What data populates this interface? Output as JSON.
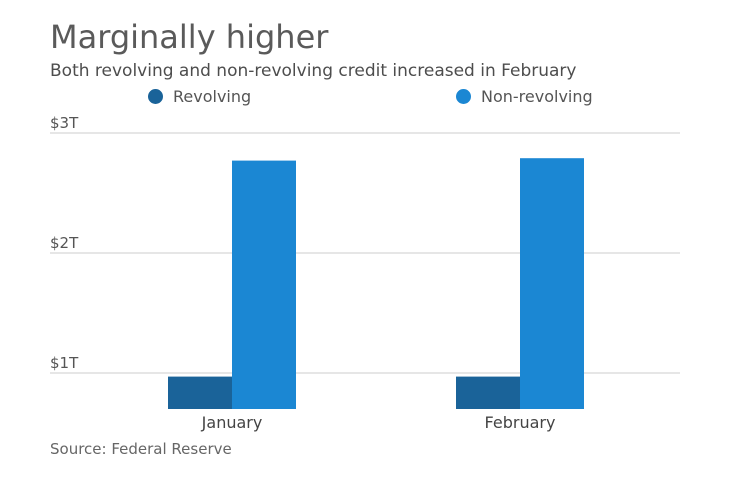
{
  "colors": {
    "revolving": "#1a6399",
    "non_revolving": "#1b87d3",
    "gridline": "#cccccc",
    "text": "#555555"
  },
  "chart_data": {
    "type": "bar",
    "title": "Marginally higher",
    "subtitle": "Both revolving and non-revolving credit increased in February",
    "xlabel": "",
    "ylabel": "",
    "categories": [
      "January",
      "February"
    ],
    "series": [
      {
        "name": "Revolving",
        "values": [
          0.97,
          0.97
        ]
      },
      {
        "name": "Non-revolving",
        "values": [
          2.77,
          2.79
        ]
      }
    ],
    "yticks": [
      {
        "value": 1,
        "label": "$1T"
      },
      {
        "value": 2,
        "label": "$2T"
      },
      {
        "value": 3,
        "label": "$3T"
      }
    ],
    "ylim": [
      0.7,
      3
    ],
    "grid": true,
    "legend_position": "top",
    "source": "Source: Federal Reserve"
  }
}
